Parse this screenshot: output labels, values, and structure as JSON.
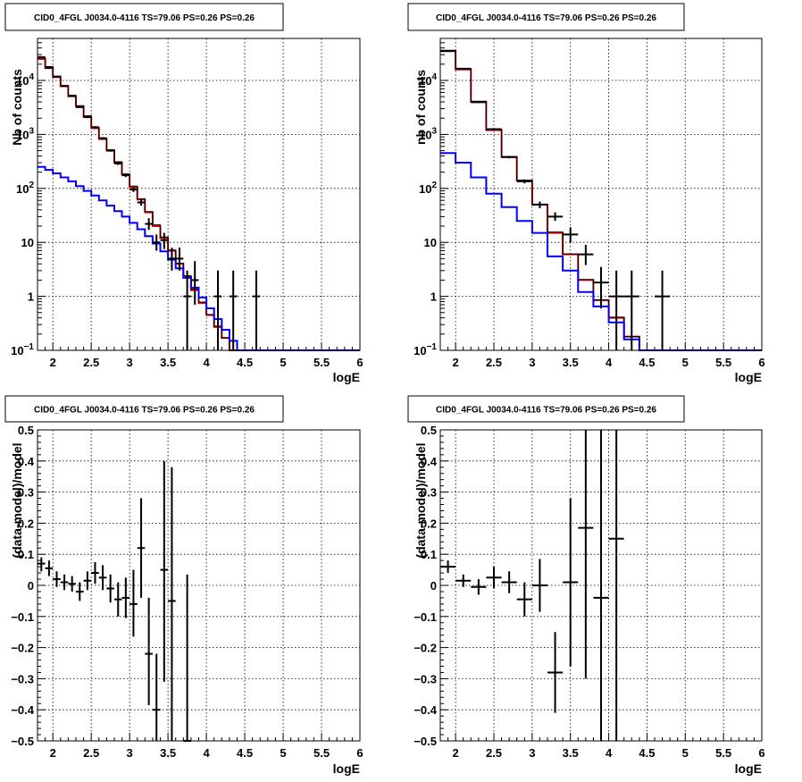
{
  "chart_data": [
    {
      "id": "top-left",
      "type": "line",
      "title": "CID0_4FGL J0034.0-4116 TS=79.06 PS=0.26 PS=0.26",
      "xlabel": "logE",
      "ylabel": "Nb of counts",
      "xlim": [
        1.8,
        6.0
      ],
      "ylim": [
        0.1,
        60000
      ],
      "yscale": "log",
      "grid": true,
      "xticks": [
        "2",
        "2.5",
        "3",
        "3.5",
        "4",
        "4.5",
        "5",
        "5.5",
        "6"
      ],
      "yticks": [
        {
          "v": 0.1,
          "label": "10",
          "sup": "−1"
        },
        {
          "v": 1,
          "label": "1"
        },
        {
          "v": 10,
          "label": "10"
        },
        {
          "v": 100,
          "label": "10",
          "sup": "2"
        },
        {
          "v": 1000,
          "label": "10",
          "sup": "3"
        },
        {
          "v": 10000,
          "label": "10",
          "sup": "4"
        }
      ],
      "bin_edges": [
        1.8,
        1.9,
        2.0,
        2.1,
        2.2,
        2.3,
        2.4,
        2.5,
        2.6,
        2.7,
        2.8,
        2.9,
        3.0,
        3.1,
        3.2,
        3.3,
        3.4,
        3.5,
        3.6,
        3.7,
        3.8,
        3.9,
        4.0,
        4.1,
        4.2,
        4.3,
        4.4,
        4.5,
        4.6,
        4.7,
        4.8,
        4.9,
        5.0,
        5.1,
        5.2,
        5.3,
        5.4,
        5.5,
        5.6,
        5.7,
        5.8,
        5.9,
        6.0
      ],
      "series": [
        {
          "color": "#ff0000",
          "kind": "step",
          "values": [
            25000,
            17000,
            11500,
            7800,
            5100,
            3300,
            2100,
            1300,
            820,
            500,
            300,
            180,
            105,
            62,
            36,
            20,
            12,
            7,
            4,
            2.3,
            1.3,
            0.75,
            0.45,
            0.27,
            0.17,
            0.1,
            0.1,
            0.1,
            0.1,
            0.1,
            0.1,
            0.1,
            0.1,
            0.1,
            0.1,
            0.1,
            0.1,
            0.1,
            0.1,
            0.1,
            0.1,
            0.1
          ]
        },
        {
          "color": "#000000",
          "kind": "step",
          "values": [
            26000,
            18000,
            12000,
            8000,
            5300,
            3400,
            2200,
            1350,
            850,
            520,
            310,
            185,
            110,
            64,
            37,
            21,
            12.5,
            7.2,
            4.1,
            2.4,
            1.35,
            0.78,
            0.46,
            0.28,
            0.17,
            0.1,
            0.1,
            0.1,
            0.1,
            0.1,
            0.1,
            0.1,
            0.1,
            0.1,
            0.1,
            0.1,
            0.1,
            0.1,
            0.1,
            0.1,
            0.1,
            0.1
          ]
        },
        {
          "color": "#0000ff",
          "kind": "step",
          "values": [
            250,
            220,
            190,
            160,
            135,
            110,
            90,
            74,
            60,
            48,
            38,
            30,
            23,
            17.5,
            13,
            9.5,
            6.8,
            4.8,
            3.3,
            2.2,
            1.45,
            0.95,
            0.6,
            0.38,
            0.24,
            0.15,
            0.1,
            0.1,
            0.1,
            0.1,
            0.1,
            0.1,
            0.1,
            0.1,
            0.1,
            0.1,
            0.1,
            0.1,
            0.1,
            0.1,
            0.1,
            0.1
          ]
        },
        {
          "color": "#000000",
          "kind": "errorbar",
          "points": [
            {
              "x": 1.85,
              "y": 27000,
              "lo": 26500,
              "hi": 27500
            },
            {
              "x": 1.95,
              "y": 17000,
              "lo": 16600,
              "hi": 17400
            },
            {
              "x": 2.05,
              "y": 11700,
              "lo": 11400,
              "hi": 12000
            },
            {
              "x": 2.15,
              "y": 7900,
              "lo": 7700,
              "hi": 8100
            },
            {
              "x": 2.25,
              "y": 5150,
              "lo": 5000,
              "hi": 5300
            },
            {
              "x": 2.35,
              "y": 3200,
              "lo": 3100,
              "hi": 3300
            },
            {
              "x": 2.45,
              "y": 2100,
              "lo": 2000,
              "hi": 2200
            },
            {
              "x": 2.55,
              "y": 1360,
              "lo": 1300,
              "hi": 1420
            },
            {
              "x": 2.65,
              "y": 850,
              "lo": 810,
              "hi": 890
            },
            {
              "x": 2.75,
              "y": 505,
              "lo": 480,
              "hi": 530
            },
            {
              "x": 2.85,
              "y": 290,
              "lo": 272,
              "hi": 308
            },
            {
              "x": 2.95,
              "y": 175,
              "lo": 162,
              "hi": 188
            },
            {
              "x": 3.05,
              "y": 95,
              "lo": 86,
              "hi": 105
            },
            {
              "x": 3.15,
              "y": 55,
              "lo": 48,
              "hi": 63
            },
            {
              "x": 3.25,
              "y": 22,
              "lo": 17,
              "hi": 28
            },
            {
              "x": 3.35,
              "y": 10,
              "lo": 7,
              "hi": 14
            },
            {
              "x": 3.45,
              "y": 11,
              "lo": 7.5,
              "hi": 15
            },
            {
              "x": 3.55,
              "y": 5,
              "lo": 3,
              "hi": 8
            },
            {
              "x": 3.65,
              "y": 5,
              "lo": 3,
              "hi": 8
            },
            {
              "x": 3.75,
              "y": 1,
              "lo": 0.1,
              "hi": 3
            },
            {
              "x": 3.85,
              "y": 2,
              "lo": 0.7,
              "hi": 4.5
            },
            {
              "x": 4.15,
              "y": 1,
              "lo": 0.1,
              "hi": 3
            },
            {
              "x": 4.35,
              "y": 1,
              "lo": 0.1,
              "hi": 3
            },
            {
              "x": 4.65,
              "y": 1,
              "lo": 0.1,
              "hi": 3
            }
          ]
        }
      ]
    },
    {
      "id": "top-right",
      "type": "line",
      "title": "CID0_4FGL J0034.0-4116 TS=79.06 PS=0.26 PS=0.26",
      "xlabel": "logE",
      "ylabel": "nb of counts",
      "xlim": [
        1.8,
        6.0
      ],
      "ylim": [
        0.1,
        60000
      ],
      "yscale": "log",
      "grid": true,
      "xticks": [
        "2",
        "2.5",
        "3",
        "3.5",
        "4",
        "4.5",
        "5",
        "5.5",
        "6"
      ],
      "yticks": [
        {
          "v": 0.1,
          "label": "10",
          "sup": "−1"
        },
        {
          "v": 1,
          "label": "1"
        },
        {
          "v": 10,
          "label": "10"
        },
        {
          "v": 100,
          "label": "10",
          "sup": "2"
        },
        {
          "v": 1000,
          "label": "10",
          "sup": "3"
        },
        {
          "v": 10000,
          "label": "10",
          "sup": "4"
        }
      ],
      "bin_edges": [
        1.8,
        2.0,
        2.2,
        2.4,
        2.6,
        2.8,
        3.0,
        3.2,
        3.4,
        3.6,
        3.8,
        4.0,
        4.2,
        4.4,
        4.6,
        4.8,
        5.0,
        5.2,
        5.4,
        5.6,
        5.8,
        6.0
      ],
      "series": [
        {
          "color": "#ff0000",
          "kind": "step",
          "values": [
            35000,
            16000,
            4000,
            1200,
            380,
            140,
            50,
            15,
            6,
            2,
            0.85,
            0.4,
            0.18,
            0.1,
            0.1,
            0.1,
            0.1,
            0.1,
            0.1,
            0.1,
            0.1
          ]
        },
        {
          "color": "#000000",
          "kind": "step",
          "values": [
            36000,
            16500,
            4100,
            1220,
            385,
            142,
            51,
            15.5,
            6.1,
            2.05,
            0.86,
            0.41,
            0.18,
            0.1,
            0.1,
            0.1,
            0.1,
            0.1,
            0.1,
            0.1,
            0.1
          ]
        },
        {
          "color": "#0000ff",
          "kind": "step",
          "values": [
            450,
            300,
            160,
            80,
            45,
            25,
            15,
            5.5,
            3,
            1.2,
            0.65,
            0.33,
            0.16,
            0.1,
            0.1,
            0.1,
            0.1,
            0.1,
            0.1,
            0.1,
            0.1
          ]
        },
        {
          "color": "#000000",
          "kind": "errorbar",
          "points": [
            {
              "x": 1.9,
              "y": 35000,
              "lo": 34700,
              "hi": 35300
            },
            {
              "x": 2.1,
              "y": 16500,
              "lo": 16300,
              "hi": 16700
            },
            {
              "x": 2.3,
              "y": 3950,
              "lo": 3880,
              "hi": 4020
            },
            {
              "x": 2.5,
              "y": 1250,
              "lo": 1210,
              "hi": 1290
            },
            {
              "x": 2.7,
              "y": 380,
              "lo": 360,
              "hi": 400
            },
            {
              "x": 2.9,
              "y": 135,
              "lo": 124,
              "hi": 147
            },
            {
              "x": 3.1,
              "y": 50,
              "lo": 43,
              "hi": 57
            },
            {
              "x": 3.3,
              "y": 30,
              "lo": 25,
              "hi": 36
            },
            {
              "x": 3.5,
              "y": 14,
              "lo": 10,
              "hi": 19
            },
            {
              "x": 3.7,
              "y": 6,
              "lo": 3.8,
              "hi": 9
            },
            {
              "x": 3.9,
              "y": 1.8,
              "lo": 0.6,
              "hi": 3.5
            },
            {
              "x": 4.1,
              "y": 1,
              "lo": 0.1,
              "hi": 3
            },
            {
              "x": 4.3,
              "y": 1,
              "lo": 0.1,
              "hi": 3
            },
            {
              "x": 4.7,
              "y": 1,
              "lo": 0.1,
              "hi": 3
            }
          ]
        }
      ]
    },
    {
      "id": "bottom-left",
      "type": "scatter",
      "title": "CID0_4FGL J0034.0-4116 TS=79.06 PS=0.26 PS=0.26",
      "xlabel": "logE",
      "ylabel": "(data-model)/model",
      "xlim": [
        1.8,
        6.0
      ],
      "ylim": [
        -0.5,
        0.5
      ],
      "yscale": "linear",
      "grid": true,
      "xticks": [
        "2",
        "2.5",
        "3",
        "3.5",
        "4",
        "4.5",
        "5",
        "5.5",
        "6"
      ],
      "yticks": [
        {
          "v": -0.5,
          "label": "−0.5"
        },
        {
          "v": -0.4,
          "label": "−0.4"
        },
        {
          "v": -0.3,
          "label": "−0.3"
        },
        {
          "v": -0.2,
          "label": "−0.2"
        },
        {
          "v": -0.1,
          "label": "−0.1"
        },
        {
          "v": 0,
          "label": "0"
        },
        {
          "v": 0.1,
          "label": "0.1"
        },
        {
          "v": 0.2,
          "label": "0.2"
        },
        {
          "v": 0.3,
          "label": "0.3"
        },
        {
          "v": 0.4,
          "label": "0.4"
        },
        {
          "v": 0.5,
          "label": "0.5"
        }
      ],
      "series": [
        {
          "color": "#000000",
          "kind": "errorbar",
          "halfwidth": 0.05,
          "points": [
            {
              "x": 1.85,
              "y": 0.07,
              "lo": 0.045,
              "hi": 0.09
            },
            {
              "x": 1.95,
              "y": 0.055,
              "lo": 0.03,
              "hi": 0.08
            },
            {
              "x": 2.05,
              "y": 0.02,
              "lo": -0.005,
              "hi": 0.045
            },
            {
              "x": 2.15,
              "y": 0.01,
              "lo": -0.015,
              "hi": 0.035
            },
            {
              "x": 2.25,
              "y": 0.005,
              "lo": -0.02,
              "hi": 0.03
            },
            {
              "x": 2.35,
              "y": -0.02,
              "lo": -0.05,
              "hi": 0.01
            },
            {
              "x": 2.45,
              "y": 0.015,
              "lo": -0.015,
              "hi": 0.045
            },
            {
              "x": 2.55,
              "y": 0.04,
              "lo": 0.005,
              "hi": 0.075
            },
            {
              "x": 2.65,
              "y": 0.025,
              "lo": -0.015,
              "hi": 0.065
            },
            {
              "x": 2.75,
              "y": -0.01,
              "lo": -0.055,
              "hi": 0.035
            },
            {
              "x": 2.85,
              "y": -0.045,
              "lo": -0.1,
              "hi": 0.01
            },
            {
              "x": 2.95,
              "y": -0.04,
              "lo": -0.105,
              "hi": 0.025
            },
            {
              "x": 3.05,
              "y": -0.06,
              "lo": -0.165,
              "hi": 0.05
            },
            {
              "x": 3.15,
              "y": 0.12,
              "lo": -0.04,
              "hi": 0.28
            },
            {
              "x": 3.25,
              "y": -0.22,
              "lo": -0.385,
              "hi": -0.04
            },
            {
              "x": 3.35,
              "y": -0.4,
              "lo": -0.5,
              "hi": -0.22
            },
            {
              "x": 3.45,
              "y": 0.05,
              "lo": -0.31,
              "hi": 0.4
            },
            {
              "x": 3.55,
              "y": -0.05,
              "lo": -0.5,
              "hi": 0.38
            },
            {
              "x": 3.75,
              "y": -0.5,
              "lo": -0.5,
              "hi": 0.035
            }
          ]
        }
      ]
    },
    {
      "id": "bottom-right",
      "type": "scatter",
      "title": "CID0_4FGL J0034.0-4116 TS=79.06 PS=0.26 PS=0.26",
      "xlabel": "logE",
      "ylabel": "(data-model)/model",
      "xlim": [
        1.8,
        6.0
      ],
      "ylim": [
        -0.5,
        0.5
      ],
      "yscale": "linear",
      "grid": true,
      "xticks": [
        "2",
        "2.5",
        "3",
        "3.5",
        "4",
        "4.5",
        "5",
        "5.5",
        "6"
      ],
      "yticks": [
        {
          "v": -0.5,
          "label": "−0.5"
        },
        {
          "v": -0.4,
          "label": "−0.4"
        },
        {
          "v": -0.3,
          "label": "−0.3"
        },
        {
          "v": -0.2,
          "label": "−0.2"
        },
        {
          "v": -0.1,
          "label": "−0.1"
        },
        {
          "v": 0,
          "label": "0"
        },
        {
          "v": 0.1,
          "label": "0.1"
        },
        {
          "v": 0.2,
          "label": "0.2"
        },
        {
          "v": 0.3,
          "label": "0.3"
        },
        {
          "v": 0.4,
          "label": "0.4"
        },
        {
          "v": 0.5,
          "label": "0.5"
        }
      ],
      "series": [
        {
          "color": "#000000",
          "kind": "errorbar",
          "halfwidth": 0.1,
          "points": [
            {
              "x": 1.9,
              "y": 0.06,
              "lo": 0.04,
              "hi": 0.08
            },
            {
              "x": 2.1,
              "y": 0.015,
              "lo": -0.005,
              "hi": 0.035
            },
            {
              "x": 2.3,
              "y": -0.005,
              "lo": -0.03,
              "hi": 0.02
            },
            {
              "x": 2.5,
              "y": 0.025,
              "lo": -0.01,
              "hi": 0.06
            },
            {
              "x": 2.7,
              "y": 0.01,
              "lo": -0.025,
              "hi": 0.045
            },
            {
              "x": 2.9,
              "y": -0.045,
              "lo": -0.1,
              "hi": 0.01
            },
            {
              "x": 3.1,
              "y": 0.0,
              "lo": -0.085,
              "hi": 0.085
            },
            {
              "x": 3.3,
              "y": -0.28,
              "lo": -0.41,
              "hi": -0.15
            },
            {
              "x": 3.5,
              "y": 0.01,
              "lo": -0.26,
              "hi": 0.28
            },
            {
              "x": 3.7,
              "y": 0.185,
              "lo": -0.3,
              "hi": 0.5
            },
            {
              "x": 3.9,
              "y": -0.04,
              "lo": -0.5,
              "hi": 0.5
            },
            {
              "x": 4.1,
              "y": 0.15,
              "lo": -0.5,
              "hi": 0.5
            }
          ]
        }
      ]
    }
  ]
}
